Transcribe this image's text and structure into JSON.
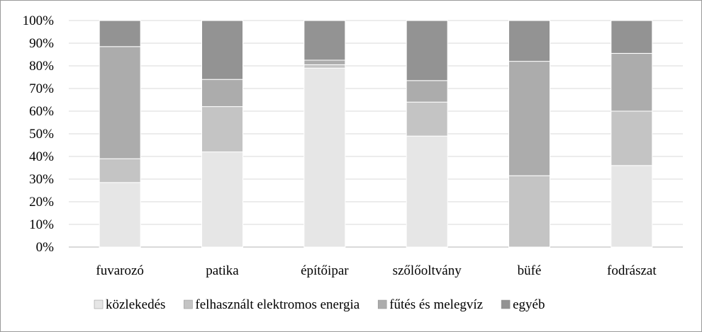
{
  "chart_data": {
    "type": "bar",
    "stacked": true,
    "percent": true,
    "categories": [
      "fuvarozó",
      "patika",
      "építőipar",
      "szőlőoltvány",
      "büfé",
      "fodrászat"
    ],
    "series": [
      {
        "name": "közlekedés",
        "color": "#e6e6e6",
        "values": [
          28.5,
          42,
          79,
          49,
          0,
          36
        ]
      },
      {
        "name": "felhasznált elektromos energia",
        "color": "#c4c4c4",
        "values": [
          10.5,
          20,
          1.5,
          15,
          31.5,
          24
        ]
      },
      {
        "name": "fűtés és melegvíz",
        "color": "#acacac",
        "values": [
          49.5,
          12,
          2,
          9.5,
          50.5,
          25.5
        ]
      },
      {
        "name": "egyéb",
        "color": "#939393",
        "values": [
          11.5,
          26,
          17.5,
          26.5,
          18,
          14.5
        ]
      }
    ],
    "yticks": [
      "0%",
      "10%",
      "20%",
      "30%",
      "40%",
      "50%",
      "60%",
      "70%",
      "80%",
      "90%",
      "100%"
    ],
    "ylim": [
      0,
      100
    ],
    "grid": true,
    "legend_position": "bottom"
  }
}
